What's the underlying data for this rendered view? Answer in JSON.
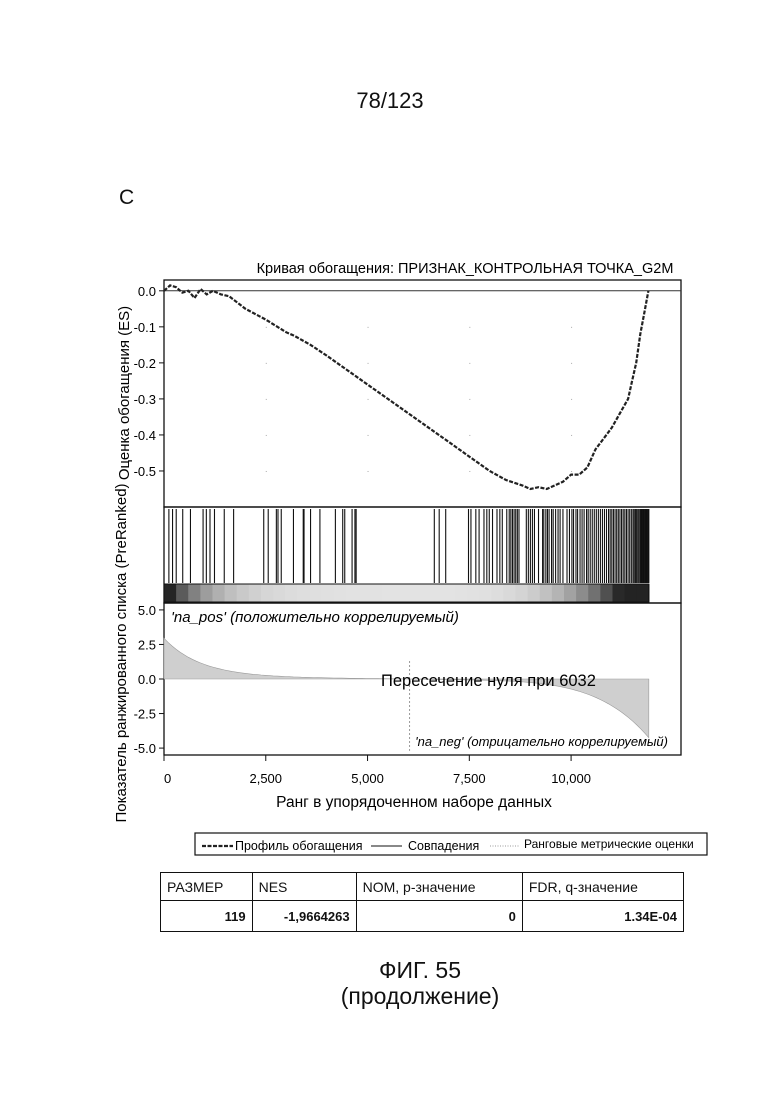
{
  "page": {
    "number": "78/123",
    "panel_letter": "С"
  },
  "figure": {
    "title": "ФИГ. 55",
    "subtitle": "(продолжение)"
  },
  "chart_data": {
    "type": "line",
    "title": "Кривая обогащения: ПРИЗНАК_КОНТРОЛЬНАЯ ТОЧКА_G2M",
    "es_panel": {
      "ylabel": "Оценка обогащения (ES)",
      "ylim": [
        -0.6,
        0.03
      ],
      "yticks": [
        "0.0",
        "-0.1",
        "-0.2",
        "-0.3",
        "-0.4",
        "-0.5"
      ],
      "series": [
        {
          "name": "Профиль обогащения",
          "x": [
            0,
            150,
            300,
            450,
            600,
            750,
            900,
            1050,
            1200,
            1400,
            1600,
            2000,
            2500,
            3000,
            3200,
            3600,
            4000,
            4500,
            5000,
            5500,
            6000,
            6500,
            7000,
            7500,
            8000,
            8400,
            8800,
            9000,
            9200,
            9400,
            9600,
            9800,
            10000,
            10200,
            10400,
            10600,
            10800,
            11000,
            11200,
            11400,
            11500,
            11600,
            11700,
            11800,
            11900
          ],
          "y": [
            0.0,
            0.015,
            0.01,
            -0.005,
            0.0,
            -0.02,
            0.005,
            -0.01,
            0.0,
            -0.01,
            -0.015,
            -0.05,
            -0.08,
            -0.115,
            -0.125,
            -0.15,
            -0.18,
            -0.22,
            -0.26,
            -0.3,
            -0.34,
            -0.38,
            -0.42,
            -0.46,
            -0.5,
            -0.525,
            -0.54,
            -0.55,
            -0.545,
            -0.55,
            -0.54,
            -0.53,
            -0.51,
            -0.51,
            -0.49,
            -0.44,
            -0.41,
            -0.38,
            -0.34,
            -0.3,
            -0.25,
            -0.2,
            -0.12,
            -0.06,
            0.0
          ]
        }
      ]
    },
    "hits": {
      "name": "Совпадения",
      "count": 119,
      "positions": [
        120,
        210,
        300,
        460,
        650,
        960,
        1040,
        1130,
        1240,
        1480,
        1710,
        2450,
        2560,
        2760,
        2800,
        2880,
        3180,
        3420,
        3440,
        3600,
        3830,
        4210,
        4390,
        4440,
        4620,
        4690,
        4720,
        6640,
        6760,
        6920,
        7480,
        7540,
        7660,
        7740,
        7860,
        7930,
        7990,
        8070,
        8180,
        8250,
        8310,
        8420,
        8480,
        8520,
        8560,
        8600,
        8640,
        8680,
        8720,
        8900,
        8950,
        9000,
        9050,
        9100,
        9200,
        9300,
        9330,
        9380,
        9420,
        9460,
        9520,
        9560,
        9620,
        9680,
        9730,
        9800,
        9900,
        9960,
        10020,
        10060,
        10120,
        10160,
        10220,
        10270,
        10320,
        10380,
        10420,
        10470,
        10520,
        10570,
        10620,
        10670,
        10720,
        10770,
        10820,
        10870,
        10920,
        10960,
        11000,
        11040,
        11080,
        11120,
        11160,
        11200,
        11240,
        11280,
        11320,
        11360,
        11400,
        11440,
        11480,
        11520,
        11550,
        11580,
        11610,
        11640,
        11670,
        11700,
        11720,
        11740,
        11760,
        11780,
        11800,
        11820,
        11840,
        11860,
        11880,
        11895,
        11910
      ]
    },
    "rank_panel": {
      "name": "Ранговые метрические оценки",
      "ylabel": "Показатель ранжированного списка (PreRanked)",
      "ylim": [
        -5.5,
        5.5
      ],
      "yticks": [
        "5.0",
        "2.5",
        "0.0",
        "-2.5",
        "-5.0"
      ],
      "pos_label": "'na_pos' (положительно коррелируемый)",
      "neg_label": "'na_neg' (отрицательно коррелируемый)",
      "zero_cross_label": "Пересечение нуля при 6032",
      "zero_cross": 6032,
      "max_value": 2.8,
      "min_value": -4.0
    },
    "x_axis": {
      "xlabel": "Ранг в упорядоченном наборе данных",
      "xlim": [
        0,
        12700
      ],
      "ticks": [
        0,
        2500,
        5000,
        7500,
        10000
      ],
      "tick_labels": [
        "0",
        "2,500",
        "5,000",
        "7,500",
        "10,000"
      ]
    },
    "legend": {
      "placement": "bottom",
      "items": [
        "Профиль обогащения",
        "Совпадения",
        "Ранговые метрические оценки"
      ]
    },
    "grid": false
  },
  "stats_table": {
    "headers": [
      "РАЗМЕР",
      "NES",
      "NOM, р-значение",
      "FDR, q-значение"
    ],
    "values": [
      "119",
      "-1,9664263",
      "0",
      "1.34E-04"
    ]
  }
}
